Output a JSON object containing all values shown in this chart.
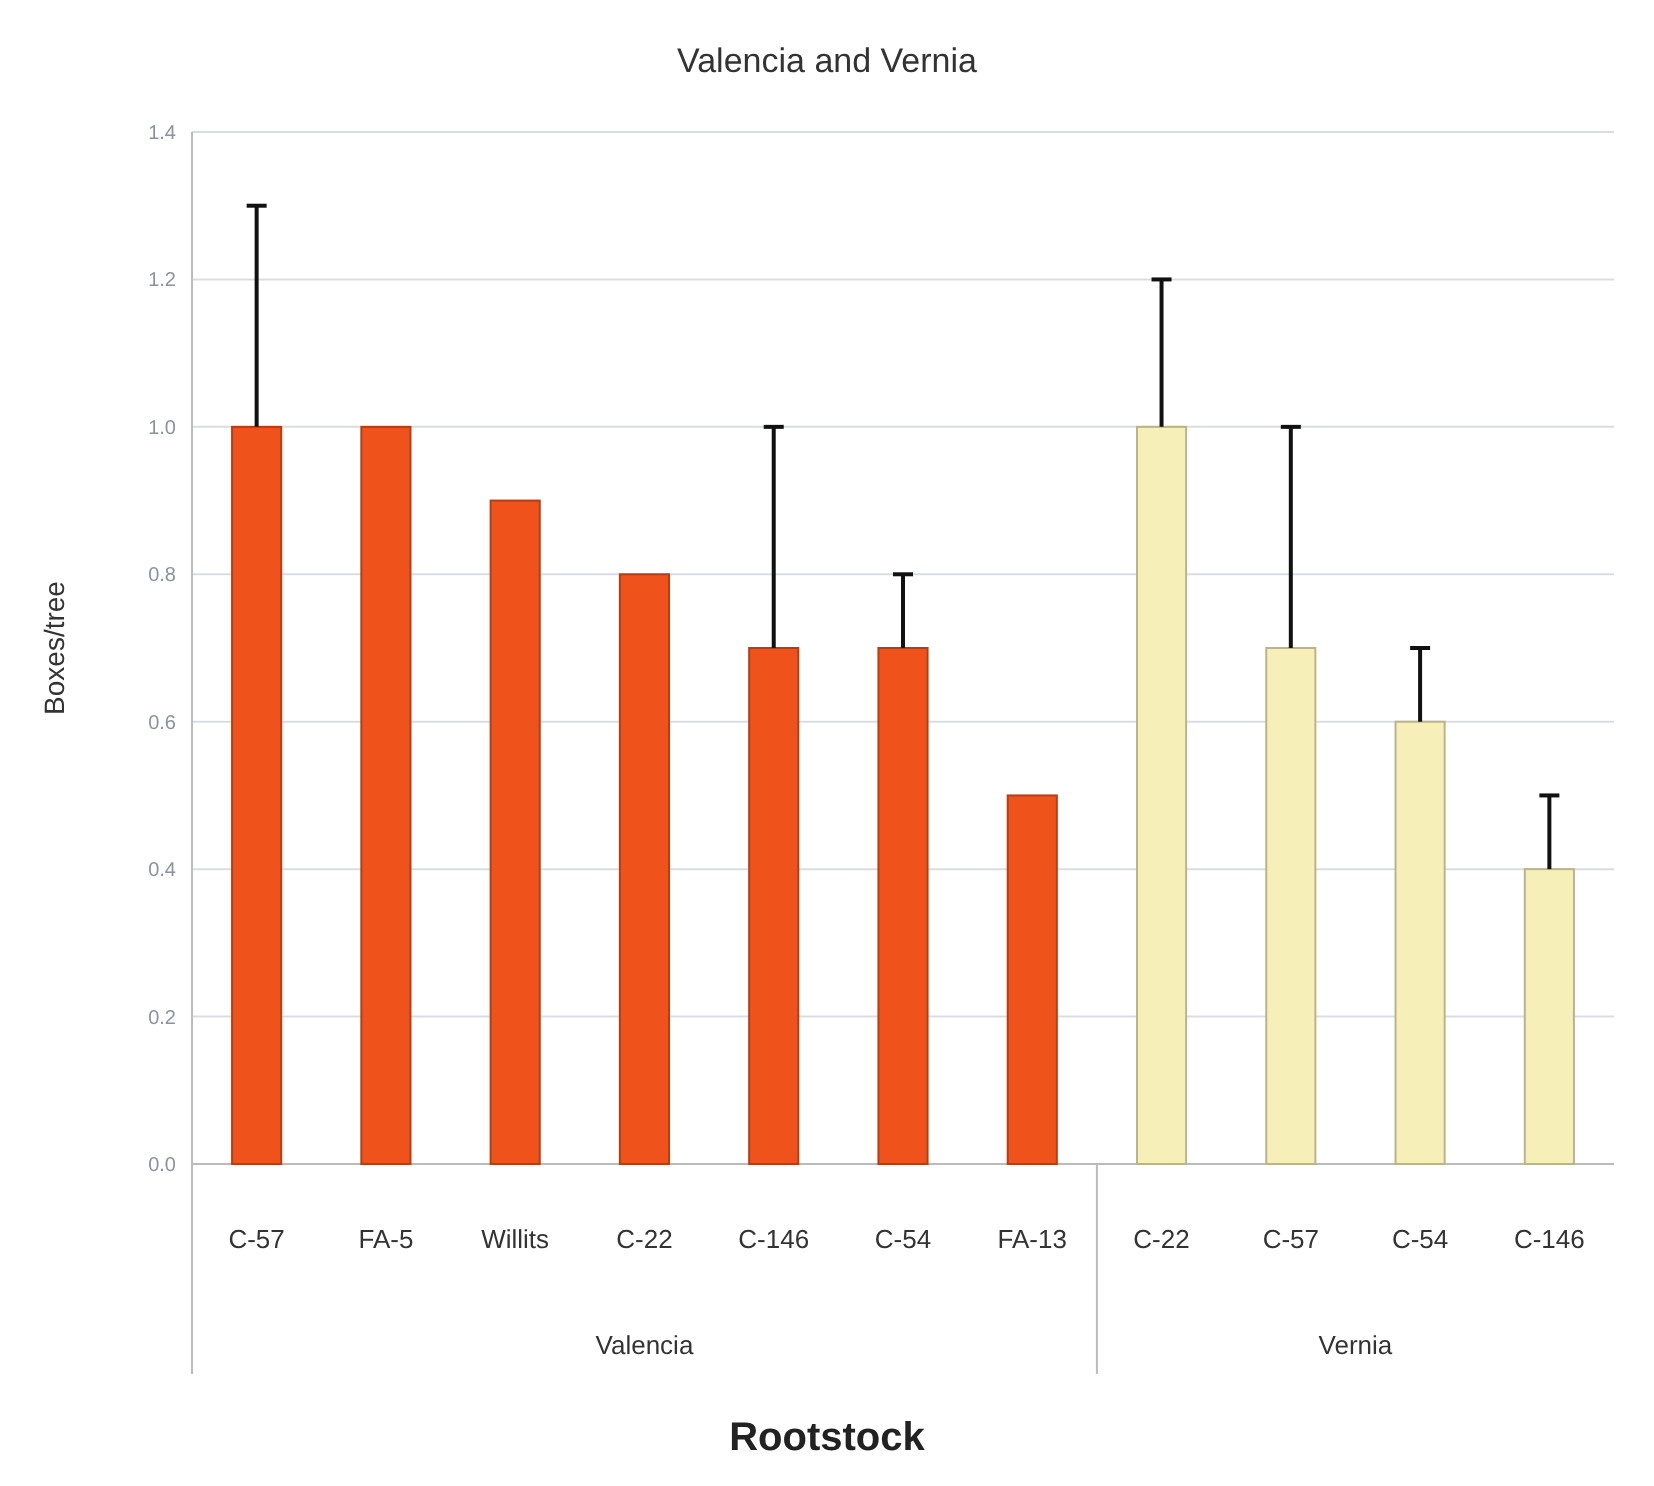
{
  "chart_data": {
    "type": "bar",
    "title": "Valencia and Vernia",
    "xlabel": "Rootstock",
    "ylabel": "Boxes/tree",
    "categories": [
      "C-57",
      "FA-5",
      "Willits",
      "C-22",
      "C-146",
      "C-54",
      "FA-13",
      "C-22",
      "C-57",
      "C-54",
      "C-146"
    ],
    "series": [
      {
        "color": "#f0521c",
        "values": [
          1.0,
          1.0,
          0.9,
          0.8,
          0.7,
          0.7,
          0.5,
          null,
          null,
          null,
          null
        ],
        "errors": [
          [
            1.0,
            1.3
          ],
          null,
          null,
          null,
          [
            0.7,
            1.0
          ],
          [
            0.7,
            0.8
          ],
          null,
          null,
          null,
          null,
          null
        ]
      },
      {
        "color": "#f7efb8",
        "values": [
          null,
          null,
          null,
          null,
          null,
          null,
          null,
          1.0,
          0.7,
          0.6,
          0.4
        ],
        "errors": [
          null,
          null,
          null,
          null,
          null,
          null,
          null,
          [
            1.0,
            1.2
          ],
          [
            0.7,
            1.0
          ],
          [
            0.6,
            0.7
          ],
          [
            0.4,
            0.5
          ]
        ]
      }
    ],
    "ylim": [
      0,
      1.4
    ],
    "yticks": [
      {
        "value": 0,
        "label": "0.0"
      },
      {
        "value": 0.2,
        "label": "0.2"
      },
      {
        "value": 0.4,
        "label": "0.4"
      },
      {
        "value": 0.6,
        "label": "0.6"
      },
      {
        "value": 0.8,
        "label": "0.8"
      },
      {
        "value": 1.0,
        "label": "1.0"
      },
      {
        "value": 1.2,
        "label": "1.2"
      },
      {
        "value": 1.4,
        "label": "1.4"
      }
    ],
    "grid": "y",
    "annotations": [
      "Valencia",
      "Vernia"
    ]
  }
}
